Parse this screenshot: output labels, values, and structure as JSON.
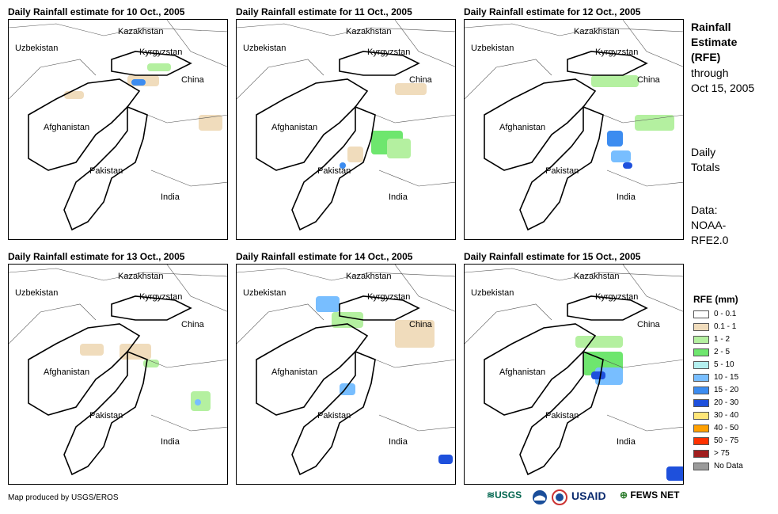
{
  "panels": [
    {
      "title": "Daily Rainfall estimate for 10 Oct., 2005"
    },
    {
      "title": "Daily Rainfall estimate for 11 Oct., 2005"
    },
    {
      "title": "Daily Rainfall estimate for 12 Oct., 2005"
    },
    {
      "title": "Daily Rainfall estimate for 13 Oct., 2005"
    },
    {
      "title": "Daily Rainfall estimate for 14 Oct., 2005"
    },
    {
      "title": "Daily Rainfall estimate for 15 Oct., 2005"
    }
  ],
  "map_labels": {
    "kazakhstan": "Kazakhstan",
    "uzbekistan": "Uzbekistan",
    "kyrgyzstan": "Kyrgyzstan",
    "china": "China",
    "afghanistan": "Afghanistan",
    "pakistan": "Pakistan",
    "india": "India"
  },
  "side": {
    "title_lines": [
      "Rainfall",
      "Estimate",
      "(RFE)"
    ],
    "through": "through",
    "date": "Oct 15, 2005",
    "daily": "Daily",
    "totals": "Totals",
    "data_label": "Data:",
    "data_src1": "NOAA-",
    "data_src2": "RFE2.0"
  },
  "legend": {
    "title": "RFE (mm)",
    "items": [
      {
        "label": "0 - 0.1",
        "color": "#ffffff"
      },
      {
        "label": "0.1 - 1",
        "color": "#f0dcbc"
      },
      {
        "label": "1 - 2",
        "color": "#b4f0a0"
      },
      {
        "label": "2 - 5",
        "color": "#6ee66e"
      },
      {
        "label": "5 - 10",
        "color": "#b4f0f0"
      },
      {
        "label": "10 - 15",
        "color": "#78beff"
      },
      {
        "label": "15 - 20",
        "color": "#3c8cf0"
      },
      {
        "label": "20 - 30",
        "color": "#1e50dc"
      },
      {
        "label": "30 - 40",
        "color": "#ffe678"
      },
      {
        "label": "40 - 50",
        "color": "#ffa000"
      },
      {
        "label": "50 - 75",
        "color": "#ff3200"
      },
      {
        "label": "> 75",
        "color": "#a01e1e"
      },
      {
        "label": "No Data",
        "color": "#9b9b9b"
      }
    ]
  },
  "credit": "Map produced by USGS/EROS",
  "logos": {
    "usgs": "USGS",
    "usaid": "USAID",
    "fewsnet": "FEWS NET"
  }
}
